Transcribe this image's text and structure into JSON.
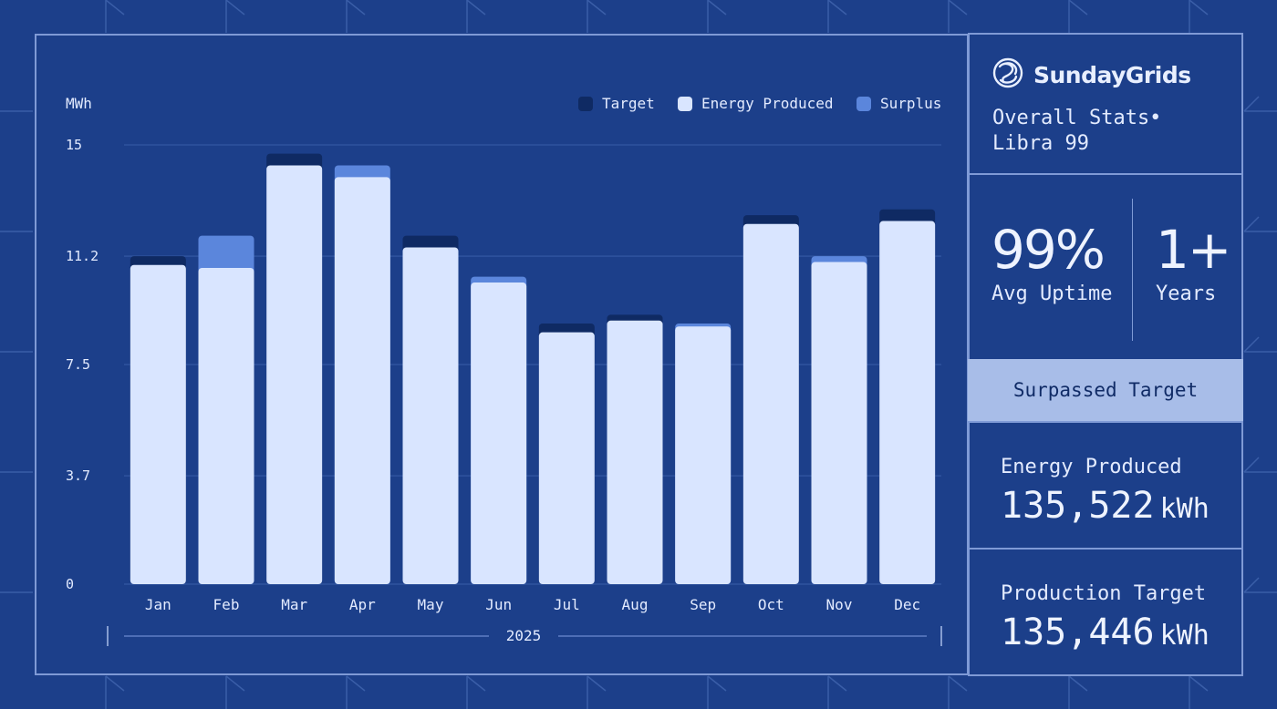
{
  "brand": {
    "name": "SundayGrids"
  },
  "stats": {
    "title": "Overall Stats• Libra 99",
    "uptime_value": "99%",
    "uptime_label": "Avg Uptime",
    "years_value": "1+",
    "years_label": "Years",
    "badge": "Surpassed Target",
    "energy_label": "Energy Produced",
    "energy_value": "135,522",
    "energy_unit": "kWh",
    "target_label": "Production Target",
    "target_value": "135,446",
    "target_unit": "kWh"
  },
  "colors": {
    "background": "#1c3f8a",
    "target": "#0f2a63",
    "energy": "#d9e5ff",
    "surplus": "#5b86dc",
    "badge": "#a8bde8"
  },
  "chart_data": {
    "type": "bar",
    "ylabel": "MWh",
    "xlabel": "2025",
    "ylim": [
      0,
      15
    ],
    "yticks": [
      "0",
      "3.7",
      "7.5",
      "11.2",
      "15"
    ],
    "categories": [
      "Jan",
      "Feb",
      "Mar",
      "Apr",
      "May",
      "Jun",
      "Jul",
      "Aug",
      "Sep",
      "Oct",
      "Nov",
      "Dec"
    ],
    "legend": [
      "Target",
      "Energy Produced",
      "Surplus"
    ],
    "legend_position": "top-right",
    "grid": true,
    "series": [
      {
        "name": "Energy Produced",
        "values": [
          10.9,
          10.8,
          14.3,
          13.9,
          11.5,
          10.3,
          8.6,
          9.0,
          8.8,
          12.3,
          11.0,
          12.4
        ]
      },
      {
        "name": "Target",
        "values": [
          11.2,
          10.8,
          14.7,
          13.9,
          11.9,
          10.3,
          8.9,
          9.2,
          8.8,
          12.6,
          11.0,
          12.8
        ]
      },
      {
        "name": "Surplus",
        "values": [
          0,
          1.1,
          0,
          0.4,
          0,
          0.2,
          0,
          0,
          0.1,
          0,
          0.2,
          0
        ]
      }
    ]
  }
}
